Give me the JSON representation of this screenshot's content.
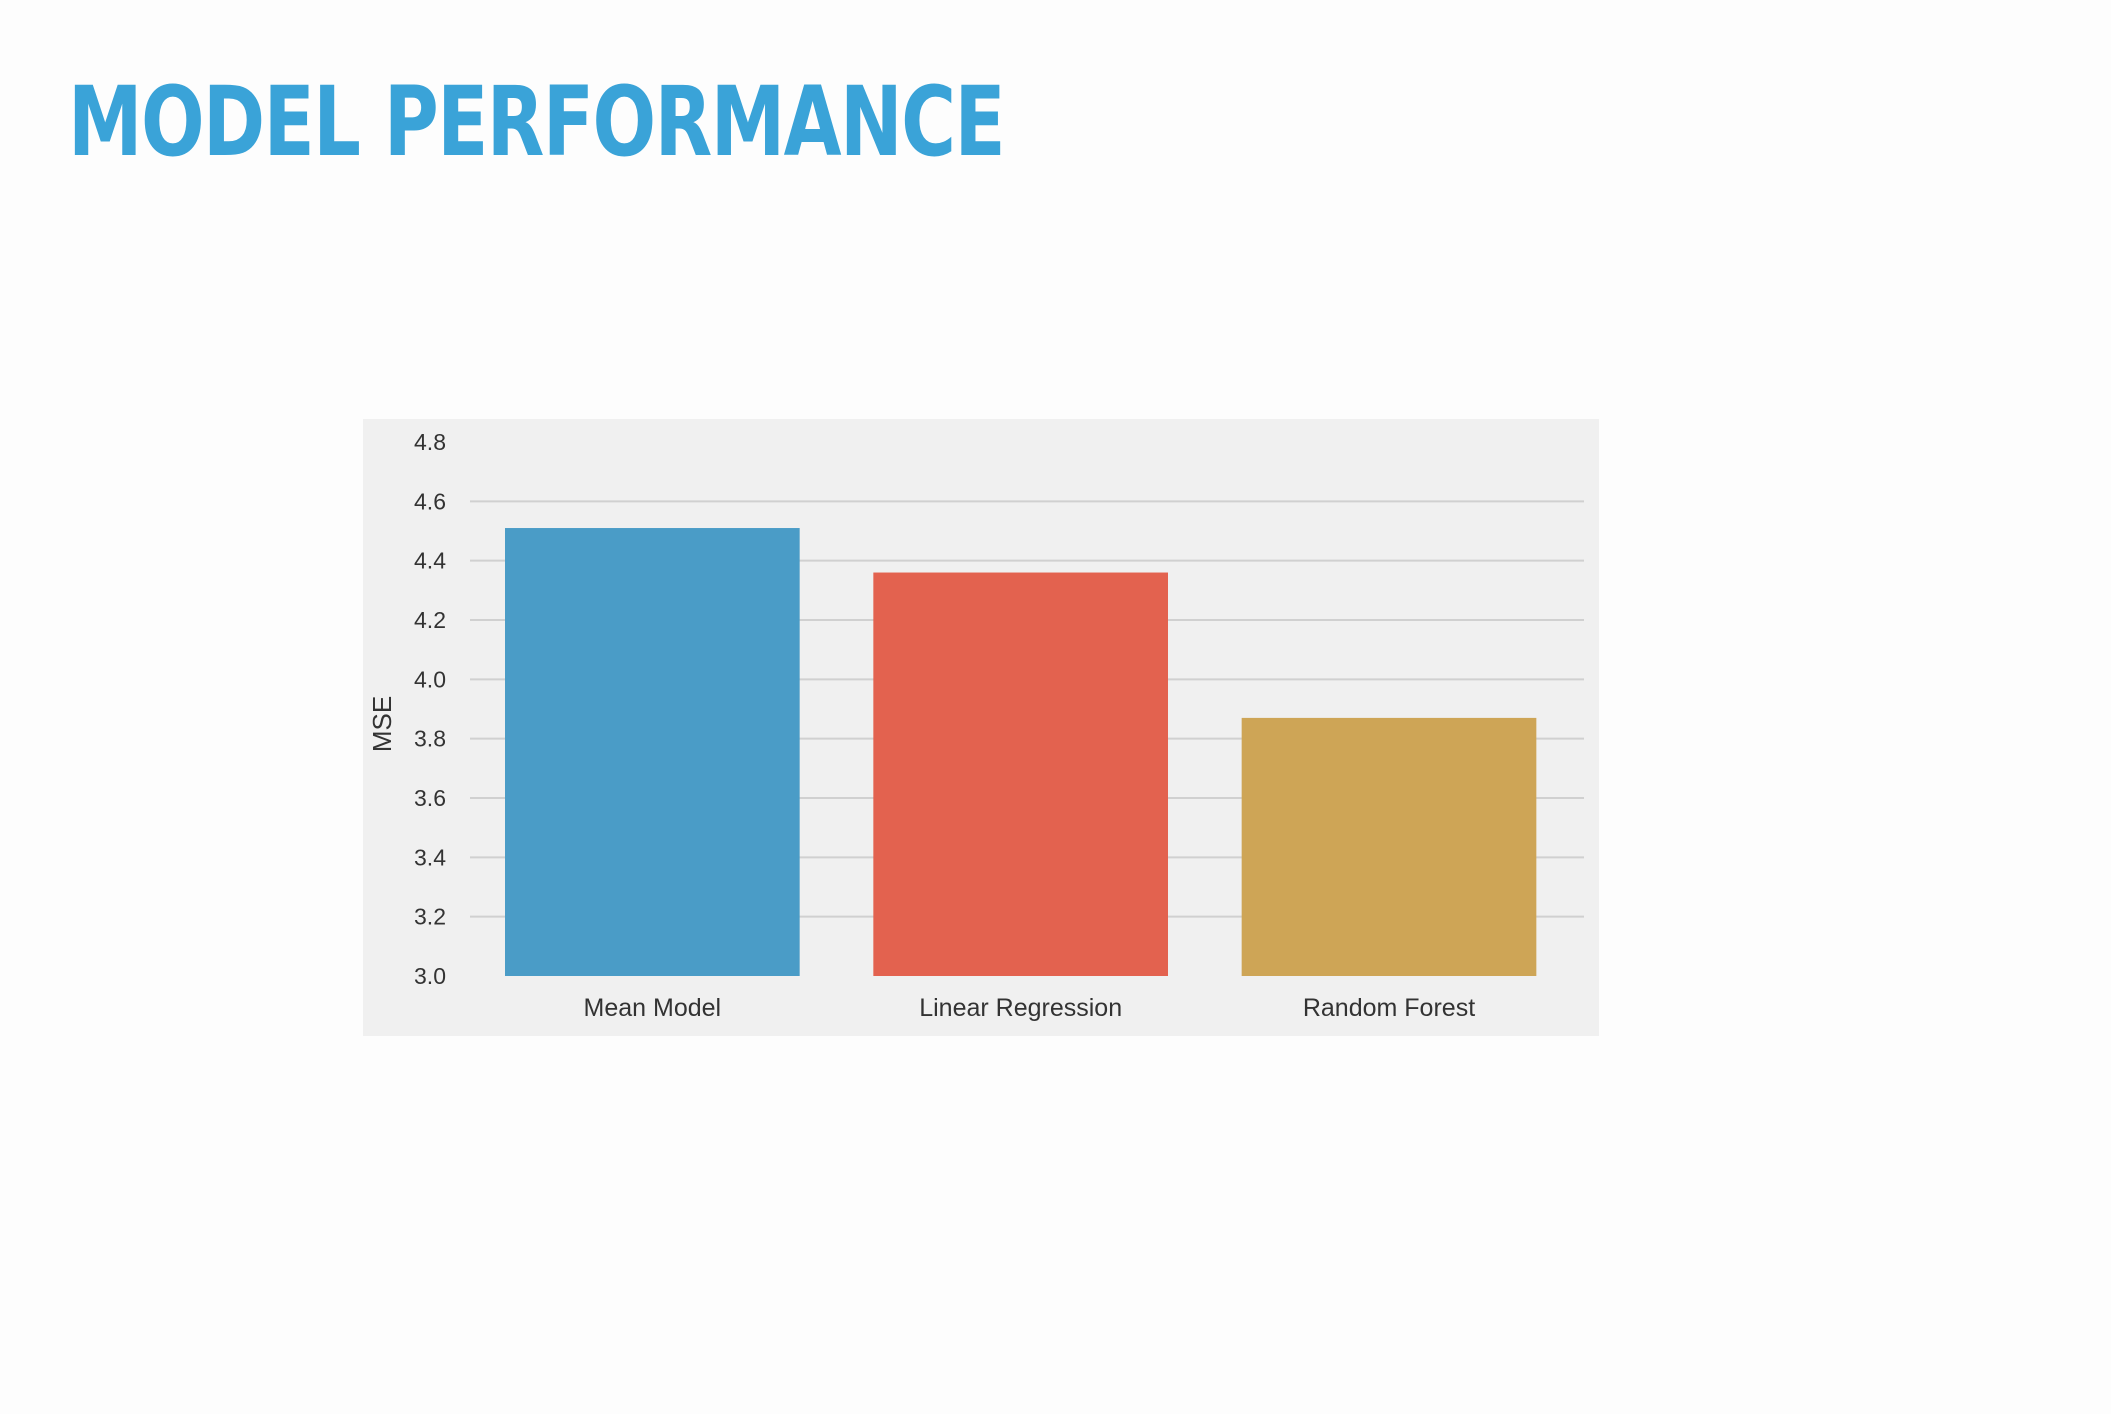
{
  "slide": {
    "title": "MODEL PERFORMANCE"
  },
  "chart_data": {
    "type": "bar",
    "title": "",
    "xlabel": "",
    "ylabel": "MSE",
    "categories": [
      "Mean Model",
      "Linear Regression",
      "Random Forest"
    ],
    "values": [
      4.51,
      4.36,
      3.87
    ],
    "colors": [
      "#4a9cc7",
      "#e3624f",
      "#cea556"
    ],
    "ylim": [
      3.0,
      4.8
    ],
    "yticks": [
      "3.0",
      "3.2",
      "3.4",
      "3.6",
      "3.8",
      "4.0",
      "4.2",
      "4.4",
      "4.6",
      "4.8"
    ],
    "grid": true,
    "grid_color": "#d0d0d0",
    "background": "#f0f0f0",
    "legend": "none"
  }
}
